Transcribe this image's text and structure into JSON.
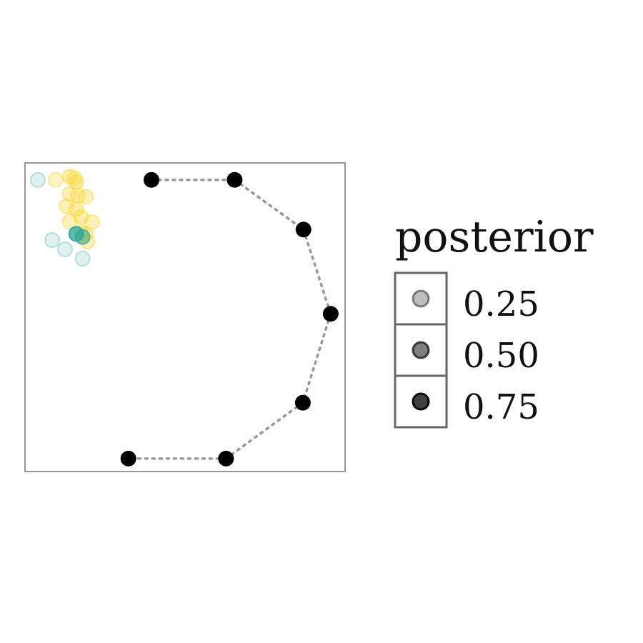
{
  "chart_data": {
    "type": "scatter",
    "title": "",
    "xlabel": "",
    "ylabel": "",
    "xlim": [
      0,
      1
    ],
    "ylim": [
      0,
      1
    ],
    "axes_visible": false,
    "grid": false,
    "legend": {
      "title": "posterior",
      "placement": "right",
      "entries": [
        {
          "label": "0.25",
          "value": 0.25
        },
        {
          "label": "0.50",
          "value": 0.5
        },
        {
          "label": "0.75",
          "value": 0.75
        }
      ]
    },
    "colors": {
      "path": "#000000",
      "connector": "#999999",
      "cluster_yellow": "#FDD835",
      "cluster_teal": "#26A69A",
      "frame": "#999999"
    },
    "path_points": [
      {
        "x": 0.395,
        "y": 0.945
      },
      {
        "x": 0.655,
        "y": 0.945
      },
      {
        "x": 0.87,
        "y": 0.784
      },
      {
        "x": 0.955,
        "y": 0.511
      },
      {
        "x": 0.868,
        "y": 0.223
      },
      {
        "x": 0.628,
        "y": 0.042
      },
      {
        "x": 0.323,
        "y": 0.042
      }
    ],
    "series": [
      {
        "color": "#FDD835",
        "points": [
          {
            "x": 0.095,
            "y": 0.945,
            "posterior": 0.3
          },
          {
            "x": 0.14,
            "y": 0.955,
            "posterior": 0.4
          },
          {
            "x": 0.155,
            "y": 0.95,
            "posterior": 0.35
          },
          {
            "x": 0.16,
            "y": 0.938,
            "posterior": 0.4
          },
          {
            "x": 0.14,
            "y": 0.9,
            "posterior": 0.35
          },
          {
            "x": 0.165,
            "y": 0.895,
            "posterior": 0.4
          },
          {
            "x": 0.19,
            "y": 0.89,
            "posterior": 0.35
          },
          {
            "x": 0.13,
            "y": 0.86,
            "posterior": 0.35
          },
          {
            "x": 0.16,
            "y": 0.85,
            "posterior": 0.4
          },
          {
            "x": 0.175,
            "y": 0.825,
            "posterior": 0.4
          },
          {
            "x": 0.14,
            "y": 0.81,
            "posterior": 0.35
          },
          {
            "x": 0.21,
            "y": 0.808,
            "posterior": 0.35
          },
          {
            "x": 0.175,
            "y": 0.775,
            "posterior": 0.4
          },
          {
            "x": 0.19,
            "y": 0.77,
            "posterior": 0.4
          },
          {
            "x": 0.195,
            "y": 0.745,
            "posterior": 0.35
          }
        ]
      },
      {
        "color": "#26A69A",
        "points": [
          {
            "x": 0.04,
            "y": 0.945,
            "posterior": 0.15
          },
          {
            "x": 0.085,
            "y": 0.75,
            "posterior": 0.15
          },
          {
            "x": 0.125,
            "y": 0.72,
            "posterior": 0.15
          },
          {
            "x": 0.18,
            "y": 0.69,
            "posterior": 0.15
          },
          {
            "x": 0.16,
            "y": 0.77,
            "posterior": 0.75
          },
          {
            "x": 0.18,
            "y": 0.76,
            "posterior": 0.55
          }
        ]
      }
    ]
  }
}
